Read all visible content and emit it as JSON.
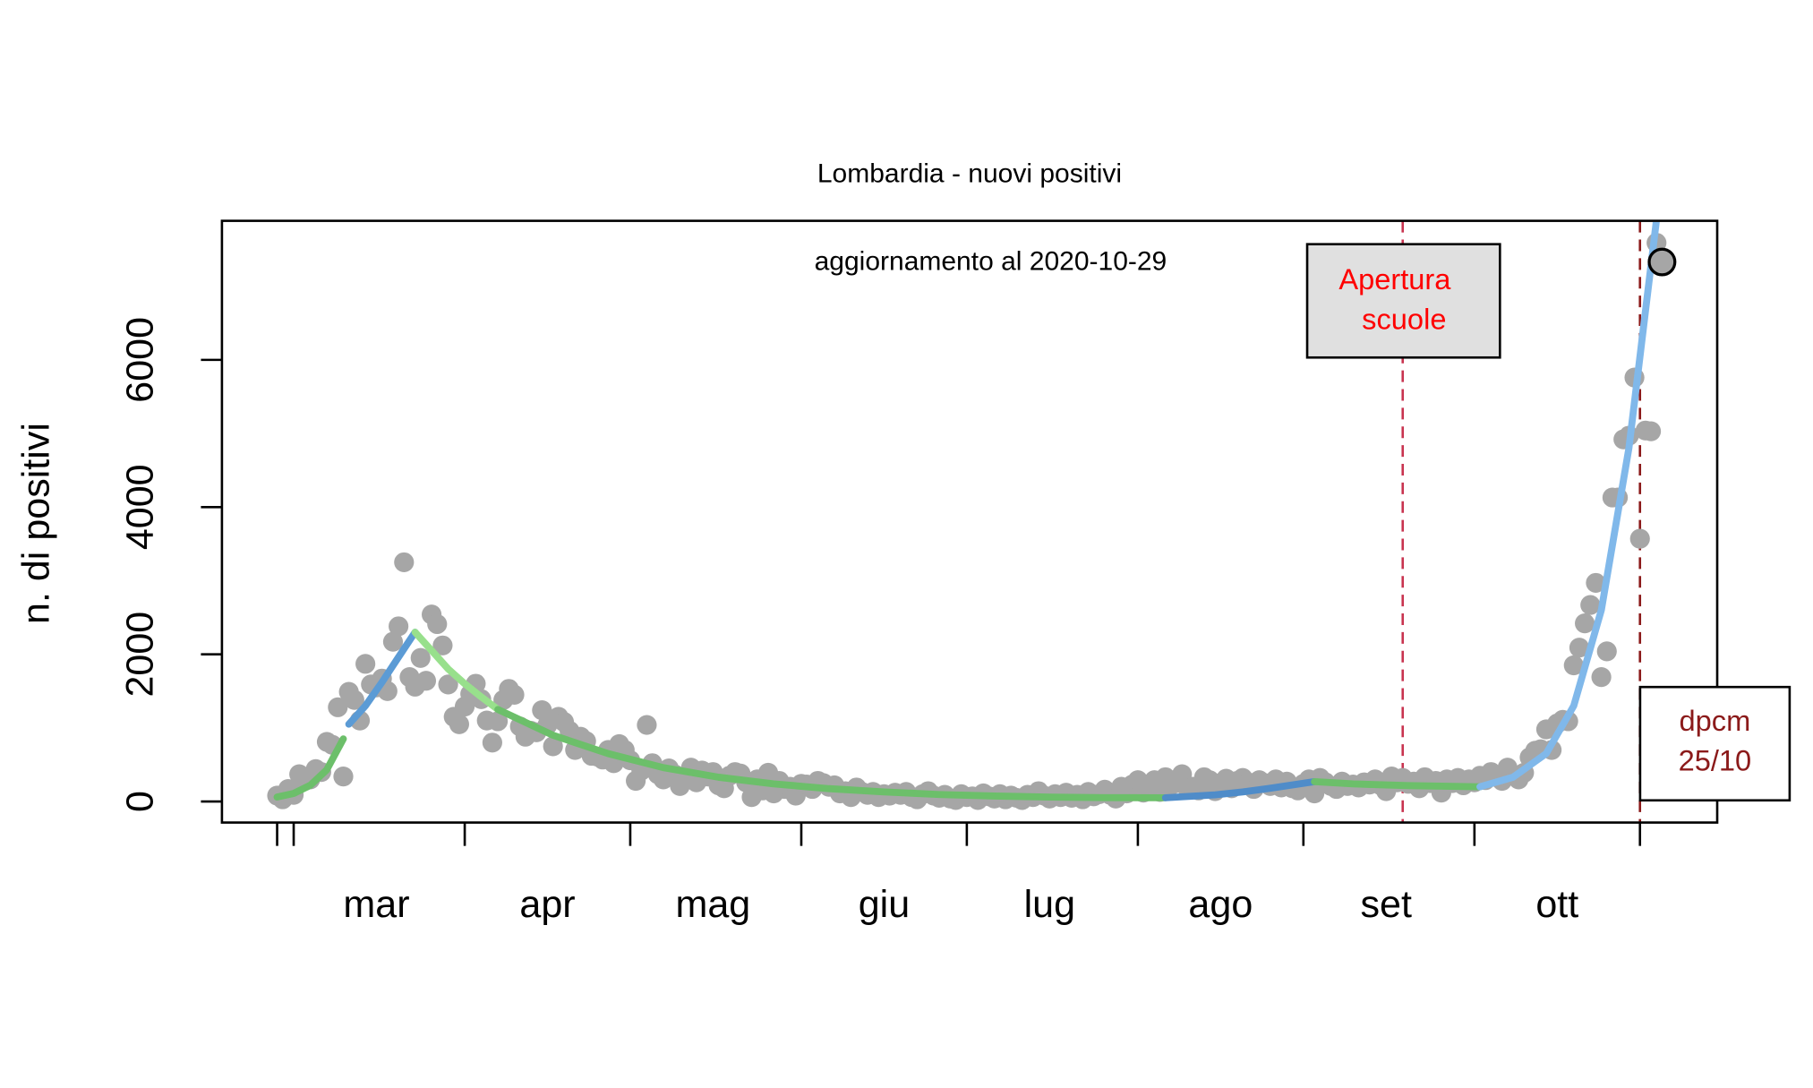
{
  "chart_data": {
    "type": "scatter",
    "title": "Lombardia - nuovi positivi",
    "subtitle": "aggiornamento al 2020-10-29",
    "y_label": "n. di positivi",
    "point_color": "#a6a6a6",
    "x": [
      0,
      1,
      2,
      3,
      4,
      5,
      6,
      7,
      8,
      9,
      10,
      11,
      12,
      13,
      14,
      15,
      16,
      17,
      18,
      19,
      20,
      21,
      22,
      23,
      24,
      25,
      26,
      27,
      28,
      29,
      30,
      31,
      32,
      33,
      34,
      35,
      36,
      37,
      38,
      39,
      40,
      41,
      42,
      43,
      44,
      45,
      46,
      47,
      48,
      49,
      50,
      51,
      52,
      53,
      54,
      55,
      56,
      57,
      58,
      59,
      60,
      61,
      62,
      63,
      64,
      65,
      66,
      67,
      68,
      69,
      70,
      71,
      72,
      73,
      74,
      75,
      76,
      77,
      78,
      79,
      80,
      81,
      82,
      83,
      84,
      85,
      86,
      87,
      88,
      89,
      90,
      91,
      92,
      93,
      94,
      95,
      96,
      97,
      98,
      99,
      100,
      101,
      102,
      103,
      104,
      105,
      106,
      107,
      108,
      109,
      110,
      111,
      112,
      113,
      114,
      115,
      116,
      117,
      118,
      119,
      120,
      121,
      122,
      123,
      124,
      125,
      126,
      127,
      128,
      129,
      130,
      131,
      132,
      133,
      134,
      135,
      136,
      137,
      138,
      139,
      140,
      141,
      142,
      143,
      144,
      145,
      146,
      147,
      148,
      149,
      150,
      151,
      152,
      153,
      154,
      155,
      156,
      157,
      158,
      159,
      160,
      161,
      162,
      163,
      164,
      165,
      166,
      167,
      168,
      169,
      170,
      171,
      172,
      173,
      174,
      175,
      176,
      177,
      178,
      179,
      180,
      181,
      182,
      183,
      184,
      185,
      186,
      187,
      188,
      189,
      190,
      191,
      192,
      193,
      194,
      195,
      196,
      197,
      198,
      199,
      200,
      201,
      202,
      203,
      204,
      205,
      206,
      207,
      208,
      209,
      210,
      211,
      212,
      213,
      214,
      215,
      216,
      217,
      218,
      219,
      220,
      221,
      222,
      223,
      224,
      225,
      226,
      227,
      228,
      229,
      230,
      231,
      232,
      233,
      234,
      235,
      236,
      237,
      238,
      239,
      240,
      241,
      242,
      243,
      244,
      245,
      246,
      247,
      248,
      249,
      250,
      251
    ],
    "values": [
      80,
      30,
      170,
      90,
      370,
      280,
      300,
      440,
      400,
      810,
      770,
      1280,
      340,
      1490,
      1380,
      1100,
      1870,
      1590,
      1550,
      1670,
      1500,
      2170,
      2380,
      3250,
      1690,
      1560,
      1950,
      1640,
      2540,
      2410,
      2120,
      1590,
      1150,
      1050,
      1290,
      1460,
      1600,
      1390,
      1100,
      800,
      1090,
      1380,
      1530,
      1450,
      1020,
      880,
      960,
      940,
      1240,
      1040,
      750,
      1150,
      1080,
      960,
      700,
      880,
      820,
      620,
      610,
      570,
      700,
      520,
      780,
      700,
      560,
      280,
      420,
      1040,
      520,
      370,
      300,
      450,
      370,
      210,
      350,
      460,
      260,
      420,
      340,
      400,
      220,
      180,
      350,
      400,
      380,
      260,
      60,
      300,
      150,
      390,
      110,
      280,
      170,
      200,
      80,
      240,
      230,
      170,
      280,
      250,
      200,
      220,
      110,
      140,
      60,
      190,
      130,
      90,
      130,
      60,
      100,
      80,
      120,
      90,
      130,
      60,
      30,
      100,
      140,
      80,
      50,
      90,
      40,
      20,
      100,
      60,
      70,
      20,
      110,
      70,
      40,
      100,
      30,
      80,
      50,
      20,
      90,
      60,
      140,
      80,
      40,
      100,
      60,
      120,
      50,
      90,
      30,
      130,
      70,
      100,
      160,
      90,
      40,
      200,
      110,
      230,
      290,
      120,
      220,
      290,
      130,
      330,
      220,
      250,
      370,
      180,
      200,
      150,
      330,
      290,
      140,
      250,
      310,
      180,
      280,
      320,
      260,
      170,
      290,
      250,
      210,
      300,
      190,
      270,
      180,
      150,
      240,
      300,
      110,
      320,
      260,
      210,
      170,
      270,
      210,
      230,
      190,
      260,
      230,
      300,
      220,
      140,
      340,
      260,
      320,
      240,
      270,
      180,
      330,
      250,
      280,
      120,
      300,
      250,
      320,
      220,
      300,
      260,
      350,
      290,
      400,
      330,
      280,
      460,
      360,
      300,
      390,
      600,
      690,
      710,
      980,
      700,
      1060,
      1110,
      1090,
      1850,
      2090,
      2420,
      2670,
      2970,
      1690,
      2040,
      4130,
      4130,
      4920,
      4970,
      5760,
      3570,
      5040,
      5030,
      7590,
      7330
    ],
    "fits": [
      {
        "color": "#6cbf6a",
        "x": [
          0,
          3,
          6,
          9,
          12
        ],
        "values": [
          60,
          110,
          220,
          430,
          850
        ]
      },
      {
        "color": "#5b9bd5",
        "x": [
          13,
          16,
          19,
          22,
          25
        ],
        "values": [
          1050,
          1300,
          1620,
          1960,
          2300
        ]
      },
      {
        "color": "#98e08c",
        "x": [
          25,
          28,
          31,
          34,
          37,
          40
        ],
        "values": [
          2300,
          2050,
          1800,
          1600,
          1420,
          1250
        ]
      },
      {
        "color": "#6cbf6a",
        "x": [
          40,
          50,
          60,
          70,
          80,
          90,
          100,
          110,
          120,
          130,
          140,
          150,
          161
        ],
        "values": [
          1250,
          900,
          650,
          460,
          330,
          240,
          175,
          130,
          95,
          75,
          60,
          52,
          50
        ]
      },
      {
        "color": "#4f8cc9",
        "x": [
          161,
          170,
          175,
          180,
          188
        ],
        "values": [
          50,
          90,
          130,
          180,
          270
        ]
      },
      {
        "color": "#6cbf6a",
        "x": [
          188,
          195,
          205,
          218
        ],
        "values": [
          270,
          240,
          215,
          200
        ]
      },
      {
        "color": "#80b8ea",
        "x": [
          218,
          224,
          230,
          235,
          240,
          245,
          250,
          253
        ],
        "values": [
          200,
          330,
          650,
          1300,
          2600,
          4800,
          7900,
          9500
        ]
      }
    ],
    "xlim": [
      -10,
      261
    ],
    "ylim": [
      -286,
      7889
    ],
    "xticks": [
      0,
      3,
      34,
      64,
      95,
      125,
      156,
      186,
      217,
      247
    ],
    "month_labels": [
      {
        "value": 18,
        "label": "mar"
      },
      {
        "value": 49,
        "label": "apr"
      },
      {
        "value": 79,
        "label": "mag"
      },
      {
        "value": 110,
        "label": "giu"
      },
      {
        "value": 140,
        "label": "lug"
      },
      {
        "value": 171,
        "label": "ago"
      },
      {
        "value": 201,
        "label": "set"
      },
      {
        "value": 232,
        "label": "ott"
      }
    ],
    "yticks": [
      0,
      2000,
      4000,
      6000
    ],
    "vlines": [
      {
        "x": 204,
        "color": "#c8334f",
        "lines": [
          "Apertura",
          "scuole"
        ],
        "text_color": "#ff0000",
        "box_fill": "#e0e0e0"
      },
      {
        "x": 247,
        "color": "#8b1a1a",
        "lines": [
          "dpcm",
          "25/10"
        ],
        "text_color": "#8b1a1a",
        "box_fill": "#ffffff"
      }
    ]
  }
}
